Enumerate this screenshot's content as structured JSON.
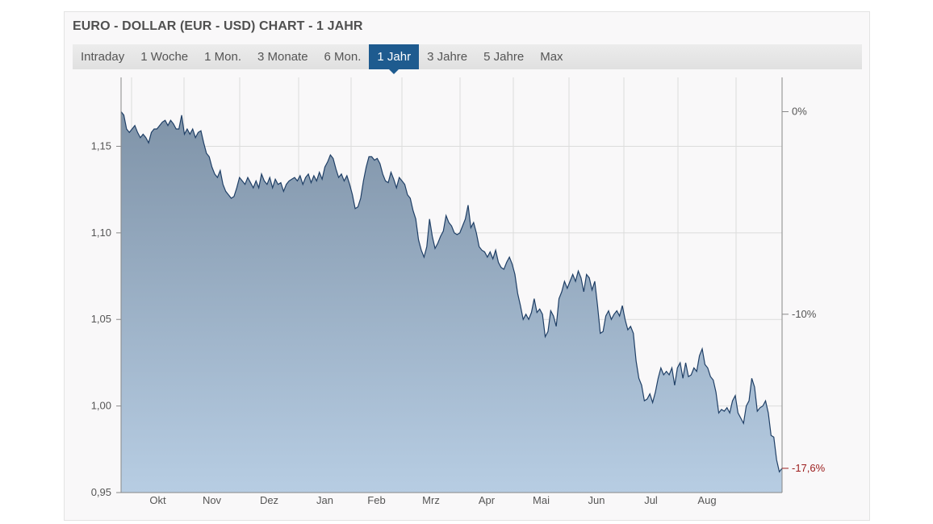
{
  "header": {
    "title": "EURO - DOLLAR (EUR - USD) CHART - 1 JAHR"
  },
  "tabs": [
    {
      "label": "Intraday",
      "active": false
    },
    {
      "label": "1 Woche",
      "active": false
    },
    {
      "label": "1 Mon.",
      "active": false
    },
    {
      "label": "3 Monate",
      "active": false
    },
    {
      "label": "6 Mon.",
      "active": false
    },
    {
      "label": "1 Jahr",
      "active": true
    },
    {
      "label": "3 Jahre",
      "active": false
    },
    {
      "label": "5 Jahre",
      "active": false
    },
    {
      "label": "Max",
      "active": false
    }
  ],
  "colors": {
    "accent": "#1e5b8f",
    "line": "#1f3f66",
    "negative": "#9b1c1c"
  },
  "chart_data": {
    "type": "area",
    "title": "",
    "x_tick_labels": [
      "Okt",
      "Nov",
      "Dez",
      "Jan",
      "Feb",
      "Mrz",
      "Apr",
      "Mai",
      "Jun",
      "Jul",
      "Aug"
    ],
    "y_left_ticks": [
      "0,95",
      "1,00",
      "1,05",
      "1,10",
      "1,15"
    ],
    "y_left_tick_values": [
      0.95,
      1.0,
      1.05,
      1.1,
      1.15
    ],
    "y_right_ticks": [
      "0%",
      "-10%"
    ],
    "y_right_tick_values": [
      0,
      -10
    ],
    "last_change_label": "-17,6%",
    "ylim": [
      0.95,
      1.1898
    ],
    "grid": true,
    "series": [
      {
        "name": "",
        "values": [
          1.17,
          1.168,
          1.16,
          1.158,
          1.16,
          1.162,
          1.158,
          1.155,
          1.157,
          1.155,
          1.152,
          1.158,
          1.16,
          1.16,
          1.162,
          1.164,
          1.165,
          1.162,
          1.165,
          1.163,
          1.16,
          1.16,
          1.168,
          1.157,
          1.16,
          1.157,
          1.16,
          1.155,
          1.158,
          1.159,
          1.152,
          1.146,
          1.144,
          1.138,
          1.134,
          1.132,
          1.136,
          1.128,
          1.124,
          1.122,
          1.12,
          1.121,
          1.126,
          1.132,
          1.13,
          1.128,
          1.132,
          1.129,
          1.126,
          1.13,
          1.126,
          1.134,
          1.13,
          1.128,
          1.132,
          1.126,
          1.131,
          1.128,
          1.129,
          1.124,
          1.128,
          1.13,
          1.131,
          1.132,
          1.13,
          1.133,
          1.128,
          1.132,
          1.134,
          1.129,
          1.133,
          1.13,
          1.135,
          1.131,
          1.138,
          1.141,
          1.145,
          1.143,
          1.137,
          1.132,
          1.134,
          1.13,
          1.133,
          1.128,
          1.122,
          1.114,
          1.115,
          1.12,
          1.13,
          1.138,
          1.144,
          1.144,
          1.142,
          1.143,
          1.14,
          1.134,
          1.13,
          1.129,
          1.135,
          1.131,
          1.126,
          1.132,
          1.13,
          1.128,
          1.122,
          1.12,
          1.113,
          1.108,
          1.096,
          1.09,
          1.086,
          1.092,
          1.108,
          1.098,
          1.091,
          1.094,
          1.098,
          1.101,
          1.11,
          1.106,
          1.104,
          1.1,
          1.099,
          1.1,
          1.104,
          1.108,
          1.116,
          1.103,
          1.106,
          1.1,
          1.092,
          1.09,
          1.089,
          1.086,
          1.089,
          1.085,
          1.09,
          1.083,
          1.08,
          1.079,
          1.083,
          1.086,
          1.082,
          1.076,
          1.065,
          1.058,
          1.05,
          1.053,
          1.05,
          1.054,
          1.062,
          1.054,
          1.056,
          1.053,
          1.04,
          1.043,
          1.055,
          1.052,
          1.046,
          1.062,
          1.066,
          1.072,
          1.068,
          1.072,
          1.076,
          1.072,
          1.078,
          1.074,
          1.066,
          1.076,
          1.074,
          1.067,
          1.072,
          1.058,
          1.042,
          1.043,
          1.052,
          1.055,
          1.05,
          1.053,
          1.055,
          1.052,
          1.058,
          1.05,
          1.044,
          1.046,
          1.042,
          1.026,
          1.016,
          1.012,
          1.003,
          1.004,
          1.007,
          1.002,
          1.008,
          1.016,
          1.022,
          1.018,
          1.02,
          1.018,
          1.022,
          1.012,
          1.022,
          1.025,
          1.016,
          1.025,
          1.017,
          1.018,
          1.022,
          1.02,
          1.029,
          1.033,
          1.024,
          1.022,
          1.017,
          1.015,
          1.008,
          0.996,
          0.998,
          0.997,
          0.999,
          0.996,
          1.003,
          1.006,
          0.996,
          0.993,
          0.99,
          1.0,
          1.003,
          1.016,
          1.011,
          0.997,
          0.999,
          1.0,
          1.003,
          0.996,
          0.983,
          0.982,
          0.969,
          0.962,
          0.964
        ]
      }
    ]
  }
}
